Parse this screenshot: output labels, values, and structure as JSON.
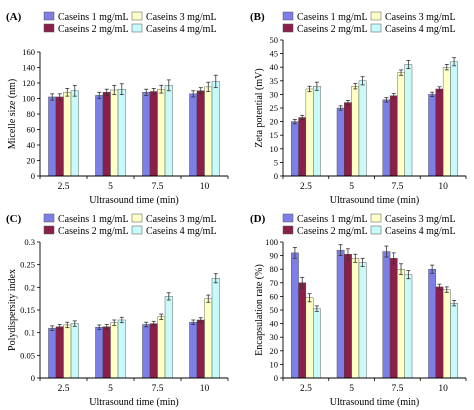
{
  "colors": {
    "casein1": "#7b7fe6",
    "casein2": "#8a1f4a",
    "casein3": "#ffffc8",
    "casein4": "#c8fafa"
  },
  "chart_data": [
    {
      "type": "bar",
      "panel_label": "(A)",
      "ylabel": "Micelle size (nm)",
      "xlabel": "Ultrasound time (min)",
      "categories": [
        "2.5",
        "5",
        "7.5",
        "10"
      ],
      "ylim": [
        0,
        160
      ],
      "yticks": [
        0,
        20,
        40,
        60,
        80,
        100,
        120,
        140,
        160
      ],
      "error_bars": true,
      "legend_position": "top",
      "series": [
        {
          "name": "Caseins 1 mg/mL",
          "color_key": "casein1",
          "values": [
            102,
            104,
            108,
            106
          ],
          "errors": [
            4,
            4,
            4,
            4
          ]
        },
        {
          "name": "Caseins 2 mg/mL",
          "color_key": "casein2",
          "values": [
            102,
            108,
            109,
            110
          ],
          "errors": [
            4,
            4,
            4,
            4
          ]
        },
        {
          "name": "Caseins 3 mg/mL",
          "color_key": "casein3",
          "values": [
            108,
            111,
            112,
            115
          ],
          "errors": [
            5,
            6,
            5,
            6
          ]
        },
        {
          "name": "Caseins 4 mg/mL",
          "color_key": "casein4",
          "values": [
            110,
            112,
            117,
            122
          ],
          "errors": [
            7,
            7,
            7,
            8
          ]
        }
      ]
    },
    {
      "type": "bar",
      "panel_label": "(B)",
      "ylabel": "Zeta potential (mV)",
      "xlabel": "Ultrasound time (min)",
      "categories": [
        "2.5",
        "5",
        "7.5",
        "10"
      ],
      "ylim": [
        0,
        50
      ],
      "yticks": [
        0,
        5,
        10,
        15,
        20,
        25,
        30,
        35,
        40,
        45,
        50
      ],
      "error_bars": true,
      "legend_position": "top",
      "series": [
        {
          "name": "Caseins 1 mg/mL",
          "color_key": "casein1",
          "values": [
            20,
            25,
            28,
            30
          ],
          "errors": [
            0.8,
            0.8,
            0.8,
            0.8
          ]
        },
        {
          "name": "Caseins 2 mg/mL",
          "color_key": "casein2",
          "values": [
            21.5,
            27,
            29.5,
            32
          ],
          "errors": [
            0.8,
            0.8,
            0.8,
            0.8
          ]
        },
        {
          "name": "Caseins 3 mg/mL",
          "color_key": "casein3",
          "values": [
            32,
            33,
            38,
            40
          ],
          "errors": [
            1,
            1,
            1,
            1
          ]
        },
        {
          "name": "Caseins 4 mg/mL",
          "color_key": "casein4",
          "values": [
            33,
            35,
            41,
            42
          ],
          "errors": [
            1.5,
            1.5,
            1.5,
            1.5
          ]
        }
      ]
    },
    {
      "type": "bar",
      "panel_label": "(C)",
      "ylabel": "Polydispersity index",
      "xlabel": "Ultrasound time (min)",
      "categories": [
        "2.5",
        "5",
        "7.5",
        "10"
      ],
      "ylim": [
        0,
        0.3
      ],
      "yticks": [
        0,
        0.05,
        0.1,
        0.15,
        0.2,
        0.25,
        0.3
      ],
      "error_bars": true,
      "legend_position": "top",
      "series": [
        {
          "name": "Caseins 1 mg/mL",
          "color_key": "casein1",
          "values": [
            0.11,
            0.112,
            0.118,
            0.123
          ],
          "errors": [
            0.005,
            0.005,
            0.005,
            0.005
          ]
        },
        {
          "name": "Caseins 2 mg/mL",
          "color_key": "casein2",
          "values": [
            0.113,
            0.113,
            0.12,
            0.128
          ],
          "errors": [
            0.005,
            0.005,
            0.005,
            0.005
          ]
        },
        {
          "name": "Caseins 3 mg/mL",
          "color_key": "casein3",
          "values": [
            0.117,
            0.122,
            0.135,
            0.175
          ],
          "errors": [
            0.006,
            0.006,
            0.006,
            0.008
          ]
        },
        {
          "name": "Caseins 4 mg/mL",
          "color_key": "casein4",
          "values": [
            0.12,
            0.128,
            0.18,
            0.22
          ],
          "errors": [
            0.006,
            0.006,
            0.008,
            0.01
          ]
        }
      ]
    },
    {
      "type": "bar",
      "panel_label": "(D)",
      "ylabel": "Encapsulation rate (%)",
      "xlabel": "Ultrasound time (min)",
      "categories": [
        "2.5",
        "5",
        "7.5",
        "10"
      ],
      "ylim": [
        0,
        100
      ],
      "yticks": [
        0,
        10,
        20,
        30,
        40,
        50,
        60,
        70,
        80,
        90,
        100
      ],
      "error_bars": true,
      "legend_position": "top",
      "series": [
        {
          "name": "Caseins 1 mg/mL",
          "color_key": "casein1",
          "values": [
            92,
            94,
            93,
            80
          ],
          "errors": [
            4,
            4,
            4,
            3
          ]
        },
        {
          "name": "Caseins 2 mg/mL",
          "color_key": "casein2",
          "values": [
            70,
            91,
            88,
            67
          ],
          "errors": [
            4,
            4,
            4,
            2
          ]
        },
        {
          "name": "Caseins 3 mg/mL",
          "color_key": "casein3",
          "values": [
            59,
            88,
            80,
            65
          ],
          "errors": [
            3,
            3,
            4,
            2
          ]
        },
        {
          "name": "Caseins 4 mg/mL",
          "color_key": "casein4",
          "values": [
            51,
            85,
            76,
            55
          ],
          "errors": [
            2,
            3,
            3,
            2
          ]
        }
      ]
    }
  ]
}
